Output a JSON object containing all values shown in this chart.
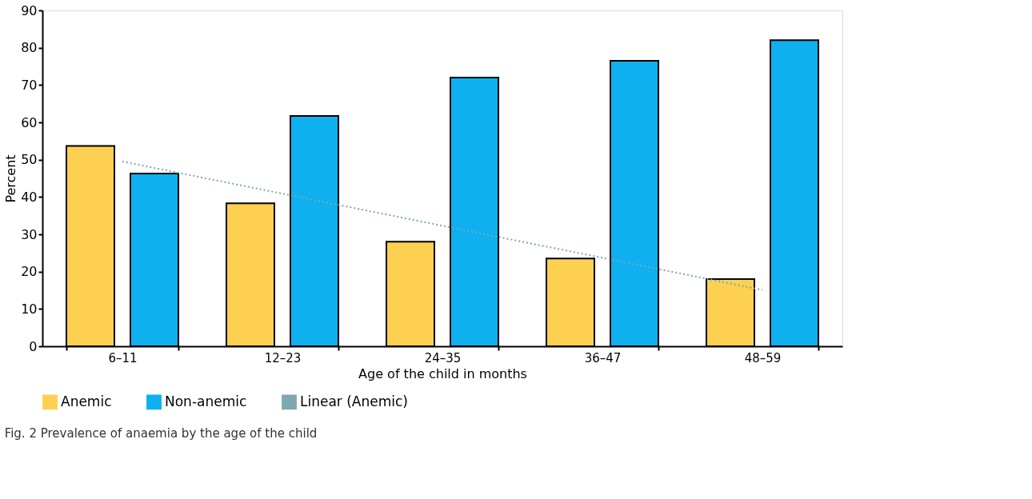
{
  "chart_data": {
    "type": "bar",
    "xlabel": "Age of the child in months",
    "ylabel": "Percent",
    "categories": [
      "6–11",
      "12–23",
      "24–35",
      "36–47",
      "48–59"
    ],
    "series": [
      {
        "name": "Anemic",
        "color": "#fdd052",
        "values": [
          53.7,
          38.3,
          28,
          23.5,
          18
        ]
      },
      {
        "name": "Non-anemic",
        "color": "#0eb0ef",
        "values": [
          46.3,
          61.7,
          72,
          76.5,
          82
        ]
      },
      {
        "name": "Linear (Anemic)",
        "type": "line",
        "color": "#7fa7b0",
        "line_style": "dotted",
        "x": [
          "6–11",
          "48–59"
        ],
        "values": [
          49.5,
          15.1
        ]
      }
    ],
    "ylim": [
      0,
      90
    ],
    "yticks": [
      0,
      10,
      20,
      30,
      40,
      50,
      60,
      70,
      80,
      90
    ],
    "grid": false,
    "legend": "bottom",
    "annotations": [
      "Fig. 2 Prevalence of anaemia by the age of the child"
    ]
  }
}
